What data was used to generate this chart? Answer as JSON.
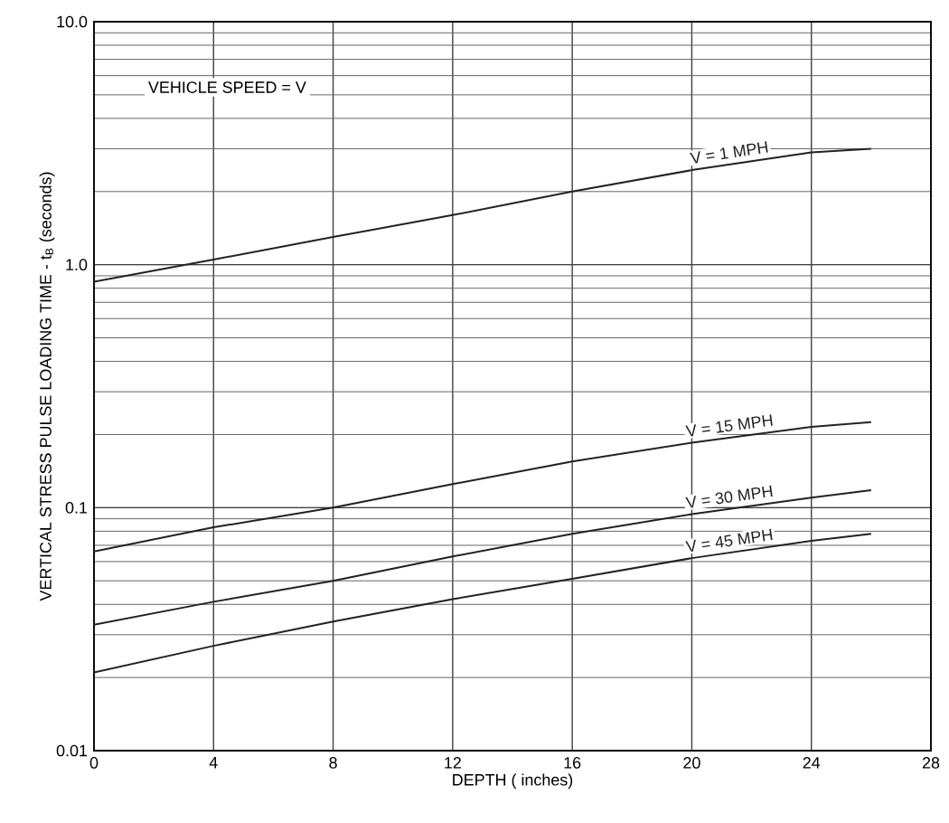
{
  "chart_data": {
    "type": "line",
    "xlabel": "DEPTH ( inches)",
    "ylabel": "VERTICAL STRESS PULSE  LOADING TIME - t$_{B}$ (seconds)",
    "annotations": [
      "VEHICLE SPEED = V"
    ],
    "x": [
      0,
      4,
      8,
      12,
      16,
      20,
      24,
      26
    ],
    "series": [
      {
        "name": "V = 1 MPH",
        "color": "#222222",
        "values": [
          0.85,
          1.05,
          1.3,
          1.6,
          2.0,
          2.45,
          2.9,
          3.0
        ]
      },
      {
        "name": "V = 15 MPH",
        "color": "#222222",
        "values": [
          0.066,
          0.083,
          0.1,
          0.125,
          0.155,
          0.185,
          0.215,
          0.225
        ]
      },
      {
        "name": "V = 30 MPH",
        "color": "#222222",
        "values": [
          0.033,
          0.041,
          0.05,
          0.063,
          0.078,
          0.094,
          0.11,
          0.118
        ]
      },
      {
        "name": "V = 45 MPH",
        "color": "#222222",
        "values": [
          0.021,
          0.027,
          0.034,
          0.042,
          0.051,
          0.062,
          0.073,
          0.078
        ]
      }
    ],
    "xlim": [
      0,
      28
    ],
    "xticks": [
      0,
      4,
      8,
      12,
      16,
      20,
      24,
      28
    ],
    "ylim": [
      0.01,
      10
    ],
    "yticks": [
      0.01,
      0.1,
      {
        "value": 1,
        "label": "1.0"
      },
      {
        "value": 10,
        "label": "10.0"
      }
    ],
    "log": "y",
    "grid": true,
    "legend": false,
    "marker": "none",
    "line_style": "solid"
  }
}
